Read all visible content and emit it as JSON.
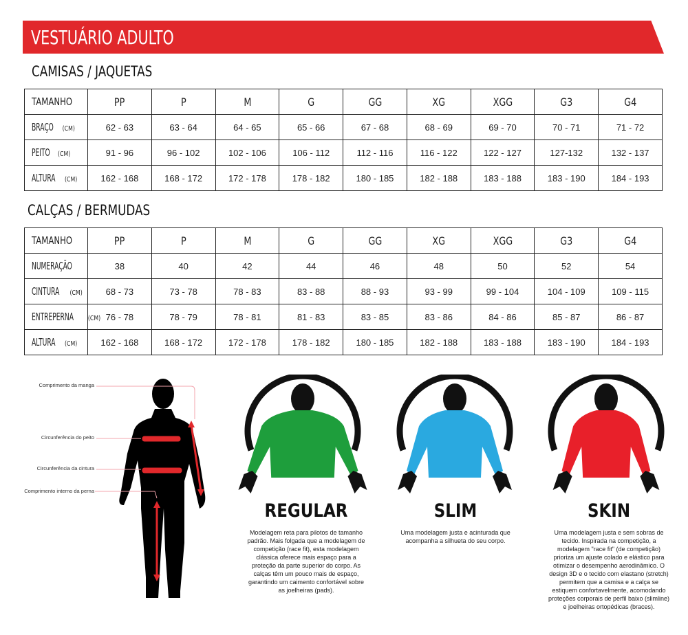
{
  "title": "VESTUÁRIO ADULTO",
  "colors": {
    "brand_red": "#e1282b",
    "regular": "#1e9e3c",
    "slim": "#2aa9e0",
    "skin": "#e8202a"
  },
  "shirts": {
    "title": "CAMISAS / JAQUETAS",
    "header": [
      "TAMANHO",
      "PP",
      "P",
      "M",
      "G",
      "GG",
      "XG",
      "XGG",
      "G3",
      "G4"
    ],
    "rows": [
      {
        "label": "BRAÇO",
        "unit": "(CM)",
        "values": [
          "62 - 63",
          "63 - 64",
          "64 - 65",
          "65 - 66",
          "67 - 68",
          "68 - 69",
          "69 - 70",
          "70 - 71",
          "71 - 72"
        ]
      },
      {
        "label": "PEITO",
        "unit": "(CM)",
        "values": [
          "91 - 96",
          "96 - 102",
          "102 - 106",
          "106 - 112",
          "112 - 116",
          "116 - 122",
          "122 - 127",
          "127-132",
          "132 - 137"
        ]
      },
      {
        "label": "ALTURA",
        "unit": "(CM)",
        "values": [
          "162 - 168",
          "168 - 172",
          "172 - 178",
          "178 - 182",
          "180 - 185",
          "182 - 188",
          "183 - 188",
          "183 - 190",
          "184 - 193"
        ]
      }
    ]
  },
  "pants": {
    "title": "CALÇAS / BERMUDAS",
    "header": [
      "TAMANHO",
      "PP",
      "P",
      "M",
      "G",
      "GG",
      "XG",
      "XGG",
      "G3",
      "G4"
    ],
    "rows": [
      {
        "label": "NUMERAÇÃO",
        "unit": "",
        "values": [
          "38",
          "40",
          "42",
          "44",
          "46",
          "48",
          "50",
          "52",
          "54"
        ]
      },
      {
        "label": "CINTURA",
        "unit": "(CM)",
        "values": [
          "68 - 73",
          "73 - 78",
          "78 - 83",
          "83 - 88",
          "88 - 93",
          "93 - 99",
          "99 - 104",
          "104 - 109",
          "109 - 115"
        ]
      },
      {
        "label": "ENTREPERNA",
        "unit": "(CM)",
        "values": [
          "76 - 78",
          "78 - 79",
          "78 - 81",
          "81 - 83",
          "83 - 85",
          "83 - 86",
          "84 - 86",
          "85 - 87",
          "86 - 87"
        ]
      },
      {
        "label": "ALTURA",
        "unit": "(CM)",
        "values": [
          "162 - 168",
          "168 - 172",
          "172 - 178",
          "178 - 182",
          "180 - 185",
          "182 - 188",
          "183 - 188",
          "183 - 190",
          "184 - 193"
        ]
      }
    ]
  },
  "body_labels": [
    "Comprimento da manga",
    "Circunferência do peito",
    "Circunferência da cintura",
    "Comprimento interno da perna"
  ],
  "fits": [
    {
      "name": "REGULAR",
      "description": "Modelagem reta para pilotos de tamanho padrão. Mais folgada que a modelagem de competição (race fit), esta modelagem clássica oferece mais espaço para a proteção da parte superior do corpo. As calças têm um pouco mais de espaço, garantindo um caimento confortável sobre as joelheiras (pads)."
    },
    {
      "name": "SLIM",
      "description": "Uma modelagem justa e acinturada que acompanha a silhueta do seu corpo."
    },
    {
      "name": "SKIN",
      "description": "Uma modelagem justa e sem sobras de tecido. Inspirada na competição, a modelagem \"race fit\" (de competição) prioriza um ajuste colado e elástico para otimizar o desempenho aerodinâmico. O design 3D e o tecido com elastano (stretch) permitem que a camisa e a calça se estiquem confortavelmente, acomodando proteções corporais de perfil baixo (slimline) e joelheiras ortopédicas (braces)."
    }
  ]
}
